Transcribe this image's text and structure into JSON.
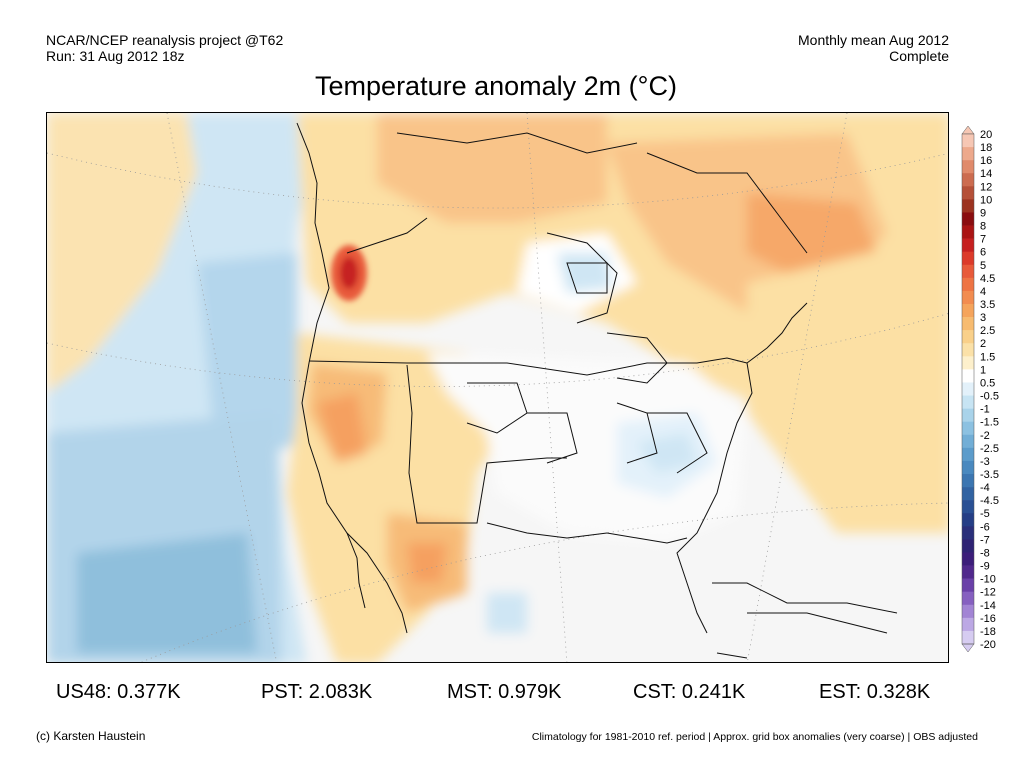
{
  "header": {
    "left_line1": "NCAR/NCEP reanalysis project @T62",
    "left_line2": "Run: 31 Aug 2012 18z",
    "right_line1": "Monthly mean Aug 2012",
    "right_line2": "Complete"
  },
  "title": "Temperature anomaly 2m (°C)",
  "colorbar": {
    "labels": [
      "20",
      "18",
      "16",
      "14",
      "12",
      "10",
      "9",
      "8",
      "7",
      "6",
      "5",
      "4.5",
      "4",
      "3.5",
      "3",
      "2.5",
      "2",
      "1.5",
      "1",
      "0.5",
      "-0.5",
      "-1",
      "-1.5",
      "-2",
      "-2.5",
      "-3",
      "-3.5",
      "-4",
      "-4.5",
      "-5",
      "-6",
      "-7",
      "-8",
      "-9",
      "-10",
      "-12",
      "-14",
      "-16",
      "-18",
      "-20"
    ],
    "colors": [
      "#f6c7b4",
      "#eda98c",
      "#e08a6b",
      "#cc6c50",
      "#b55038",
      "#9c3320",
      "#8a0d10",
      "#aa1414",
      "#c62020",
      "#dc3a2a",
      "#e85a3a",
      "#ee7444",
      "#f28c50",
      "#f5a45c",
      "#f7bb70",
      "#f9d08a",
      "#fbe1a8",
      "#fdf0cc",
      "#ffffff",
      "#e3f1fa",
      "#c7e4f3",
      "#a9d3ea",
      "#8cc1e1",
      "#72aed6",
      "#5c9ccb",
      "#4a89bf",
      "#3c76b1",
      "#3163a2",
      "#2a5094",
      "#253e86",
      "#2a2f7a",
      "#2f2374",
      "#3c1d7a",
      "#50288c",
      "#6a40a8",
      "#8660c0",
      "#a284d4",
      "#bca8e4",
      "#d6ccf1"
    ]
  },
  "stats": [
    {
      "label": "US48: 0.377K"
    },
    {
      "label": "PST: 2.083K"
    },
    {
      "label": "MST: 0.979K"
    },
    {
      "label": "CST: 0.241K"
    },
    {
      "label": "EST: 0.328K"
    }
  ],
  "footer": {
    "left": "(c) Karsten Haustein",
    "right": "Climatology for 1981-2010 ref. period | Approx. grid box anomalies (very coarse) | OBS adjusted"
  }
}
